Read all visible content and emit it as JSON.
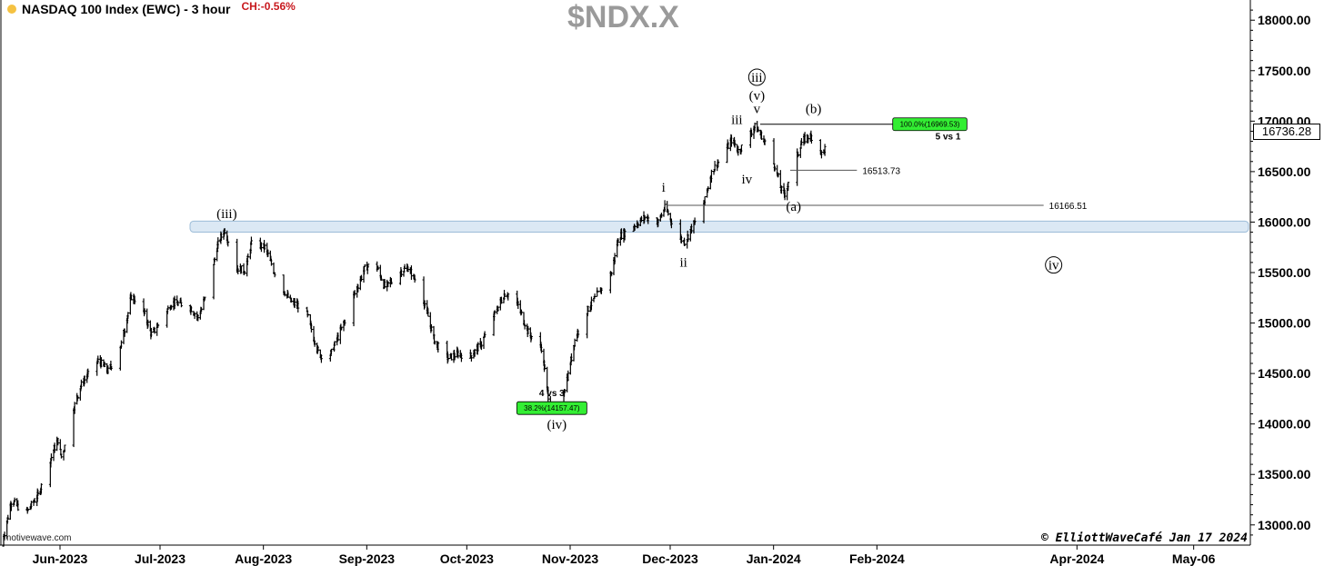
{
  "header": {
    "title": "NASDAQ 100 Index (EWC) - 3 hour",
    "change": "CH:-0.56%",
    "symbol": "$NDX.X"
  },
  "footer": {
    "source": "motivewave.com",
    "credit": "© ElliottWaveCafé Jan 17 2024"
  },
  "colors": {
    "price": "#000000",
    "zone_fill": "#dbe8f4",
    "zone_stroke": "#9cbcd8",
    "fib_box": "#33ee33",
    "change": "#c8191e",
    "symbol": "#9a9a9a",
    "status_dot": "#f5c242"
  },
  "chart_data": {
    "type": "line",
    "series_style": "ohlc-bars",
    "y_scale": [
      12800,
      18200
    ],
    "x_scale": [
      "2023-05-14",
      "2024-05-23"
    ],
    "yticks": [
      "13000.00",
      "13500.00",
      "14000.00",
      "14500.00",
      "15000.00",
      "15500.00",
      "16000.00",
      "16500.00",
      "17000.00",
      "17500.00",
      "18000.00"
    ],
    "ytick_values": [
      13000,
      13500,
      14000,
      14500,
      15000,
      15500,
      16000,
      16500,
      17000,
      17500,
      18000
    ],
    "xticks": [
      {
        "label": "Jun-2023",
        "date": "2023-06-01"
      },
      {
        "label": "Jul-2023",
        "date": "2023-07-01"
      },
      {
        "label": "Aug-2023",
        "date": "2023-08-01"
      },
      {
        "label": "Sep-2023",
        "date": "2023-09-01"
      },
      {
        "label": "Oct-2023",
        "date": "2023-10-01"
      },
      {
        "label": "Nov-2023",
        "date": "2023-11-01"
      },
      {
        "label": "Dec-2023",
        "date": "2023-12-01"
      },
      {
        "label": "Jan-2024",
        "date": "2024-01-01"
      },
      {
        "label": "Feb-2024",
        "date": "2024-02-01"
      },
      {
        "label": "Apr-2024",
        "date": "2024-04-01"
      },
      {
        "label": "May-06",
        "date": "2024-05-06"
      }
    ],
    "last_price": "16736.28",
    "price_path": [
      {
        "date": "2023-05-15",
        "value": 12790
      },
      {
        "date": "2023-05-18",
        "value": 13250
      },
      {
        "date": "2023-05-22",
        "value": 13100
      },
      {
        "date": "2023-05-26",
        "value": 13300
      },
      {
        "date": "2023-05-31",
        "value": 13780
      },
      {
        "date": "2023-06-01",
        "value": 13850
      },
      {
        "date": "2023-06-02",
        "value": 13650
      },
      {
        "date": "2023-06-05",
        "value": 14100
      },
      {
        "date": "2023-06-08",
        "value": 14400
      },
      {
        "date": "2023-06-13",
        "value": 14630
      },
      {
        "date": "2023-06-16",
        "value": 14520
      },
      {
        "date": "2023-06-20",
        "value": 14800
      },
      {
        "date": "2023-06-23",
        "value": 15280
      },
      {
        "date": "2023-06-27",
        "value": 15080
      },
      {
        "date": "2023-06-29",
        "value": 14880
      },
      {
        "date": "2023-07-05",
        "value": 15200
      },
      {
        "date": "2023-07-10",
        "value": 15180
      },
      {
        "date": "2023-07-13",
        "value": 15050
      },
      {
        "date": "2023-07-16",
        "value": 15350
      },
      {
        "date": "2023-07-19",
        "value": 15800
      },
      {
        "date": "2023-07-21",
        "value": 15930
      },
      {
        "date": "2023-07-24",
        "value": 15550
      },
      {
        "date": "2023-07-27",
        "value": 15520
      },
      {
        "date": "2023-07-29",
        "value": 15800
      },
      {
        "date": "2023-08-02",
        "value": 15750
      },
      {
        "date": "2023-08-06",
        "value": 15400
      },
      {
        "date": "2023-08-10",
        "value": 15200
      },
      {
        "date": "2023-08-14",
        "value": 15150
      },
      {
        "date": "2023-08-18",
        "value": 14700
      },
      {
        "date": "2023-08-21",
        "value": 14640
      },
      {
        "date": "2023-08-25",
        "value": 14950
      },
      {
        "date": "2023-08-29",
        "value": 15300
      },
      {
        "date": "2023-09-01",
        "value": 15550
      },
      {
        "date": "2023-09-04",
        "value": 15600
      },
      {
        "date": "2023-09-07",
        "value": 15350
      },
      {
        "date": "2023-09-11",
        "value": 15500
      },
      {
        "date": "2023-09-14",
        "value": 15550
      },
      {
        "date": "2023-09-18",
        "value": 15300
      },
      {
        "date": "2023-09-20",
        "value": 15050
      },
      {
        "date": "2023-09-22",
        "value": 14800
      },
      {
        "date": "2023-09-26",
        "value": 14650
      },
      {
        "date": "2023-09-29",
        "value": 14700
      },
      {
        "date": "2023-10-02",
        "value": 14650
      },
      {
        "date": "2023-10-06",
        "value": 14800
      },
      {
        "date": "2023-10-10",
        "value": 15100
      },
      {
        "date": "2023-10-13",
        "value": 15300
      },
      {
        "date": "2023-10-16",
        "value": 15250
      },
      {
        "date": "2023-10-20",
        "value": 14900
      },
      {
        "date": "2023-10-24",
        "value": 14750
      },
      {
        "date": "2023-10-26",
        "value": 14250
      },
      {
        "date": "2023-10-27",
        "value": 14110
      },
      {
        "date": "2023-10-30",
        "value": 14250
      },
      {
        "date": "2023-11-01",
        "value": 14500
      },
      {
        "date": "2023-11-03",
        "value": 14850
      },
      {
        "date": "2023-11-07",
        "value": 15150
      },
      {
        "date": "2023-11-10",
        "value": 15300
      },
      {
        "date": "2023-11-14",
        "value": 15500
      },
      {
        "date": "2023-11-16",
        "value": 15850
      },
      {
        "date": "2023-11-20",
        "value": 15950
      },
      {
        "date": "2023-11-24",
        "value": 16050
      },
      {
        "date": "2023-11-28",
        "value": 16000
      },
      {
        "date": "2023-11-30",
        "value": 16150
      },
      {
        "date": "2023-12-04",
        "value": 15850
      },
      {
        "date": "2023-12-06",
        "value": 15800
      },
      {
        "date": "2023-12-08",
        "value": 15950
      },
      {
        "date": "2023-12-11",
        "value": 16100
      },
      {
        "date": "2023-12-14",
        "value": 16500
      },
      {
        "date": "2023-12-18",
        "value": 16700
      },
      {
        "date": "2023-12-20",
        "value": 16820
      },
      {
        "date": "2023-12-22",
        "value": 16700
      },
      {
        "date": "2023-12-27",
        "value": 16950
      },
      {
        "date": "2023-12-29",
        "value": 16850
      },
      {
        "date": "2024-01-02",
        "value": 16550
      },
      {
        "date": "2024-01-04",
        "value": 16300
      },
      {
        "date": "2024-01-05",
        "value": 16280
      },
      {
        "date": "2024-01-08",
        "value": 16600
      },
      {
        "date": "2024-01-10",
        "value": 16800
      },
      {
        "date": "2024-01-12",
        "value": 16850
      },
      {
        "date": "2024-01-15",
        "value": 16830
      },
      {
        "date": "2024-01-16",
        "value": 16650
      },
      {
        "date": "2024-01-17",
        "value": 16736
      }
    ],
    "resistance_zone": {
      "low": 15900,
      "high": 16010,
      "from": "2023-07-10"
    },
    "levels": [
      {
        "value": 16969.53,
        "from": "2023-12-28",
        "to": "2024-02-28",
        "label": "100.0%(16969.53)",
        "boxed": true,
        "note": "5 vs 1"
      },
      {
        "value": 16513.73,
        "from": "2024-01-06",
        "to": "2024-01-26",
        "label": "16513.73",
        "boxed": false
      },
      {
        "value": 16166.51,
        "from": "2023-11-30",
        "to": "2024-03-22",
        "label": "16166.51",
        "boxed": false
      },
      {
        "value": 14157.47,
        "from": "2023-10-27",
        "to": "2023-11-06",
        "label": "38.2%(14157.47)",
        "boxed": true,
        "note": "4 vs 3"
      }
    ],
    "wave_labels": [
      {
        "text": "(iii)",
        "date": "2023-07-21",
        "value": 16040
      },
      {
        "text": "(iv)",
        "date": "2023-10-28",
        "value": 13950
      },
      {
        "text": "i",
        "date": "2023-11-29",
        "value": 16300
      },
      {
        "text": "ii",
        "date": "2023-12-05",
        "value": 15560
      },
      {
        "text": "iii",
        "date": "2023-12-21",
        "value": 16970
      },
      {
        "text": "iv",
        "date": "2023-12-24",
        "value": 16380
      },
      {
        "text": "v",
        "date": "2023-12-27",
        "value": 17080
      },
      {
        "text": "(v)",
        "date": "2023-12-27",
        "value": 17210
      },
      {
        "text": "(b)",
        "date": "2024-01-13",
        "value": 17080
      },
      {
        "text": "(a)",
        "date": "2024-01-07",
        "value": 16110
      }
    ],
    "circled_labels": [
      {
        "text": "iii",
        "date": "2023-12-27",
        "value": 17390
      },
      {
        "text": "iv",
        "date": "2024-03-25",
        "value": 15530
      }
    ]
  }
}
